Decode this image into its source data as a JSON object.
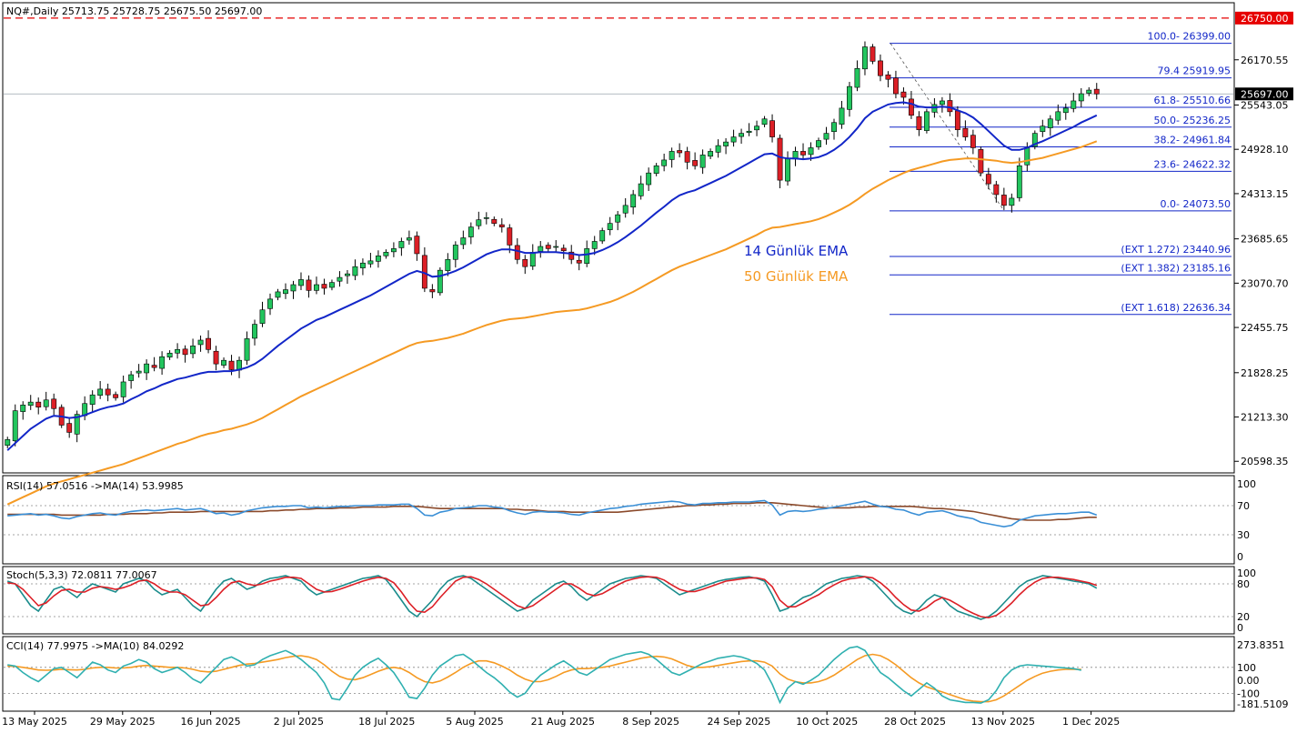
{
  "header": {
    "symbol_info": "NQ#,Daily  25713.75 25728.75 25675.50 25697.00",
    "rsi_info": "RSI(14) 57.0516  ->MA(14) 53.9985",
    "stoch_info": "Stoch(5,3,3) 72.0811 77.0067",
    "cci_info": "CCI(14) 77.9975  ->MA(10) 84.0292"
  },
  "legend": {
    "ema14": "14 Günlük EMA",
    "ema50": "50 Günlük EMA"
  },
  "colors": {
    "bull": "#22c55e",
    "bear": "#dc1f26",
    "ema14": "#1226c8",
    "ema50": "#f59a23",
    "fib": "#1226c8",
    "resistance": "#e60000",
    "rsi": "#3a8fd6",
    "rsi_ma": "#8b4a2b",
    "stoch_k": "#1a8c8c",
    "stoch_d": "#dc1f26",
    "cci": "#2fb0b0",
    "cci_ma": "#f59a23"
  },
  "price_axis": {
    "ticks": [
      "26170.55",
      "25543.05",
      "24928.10",
      "24313.15",
      "23685.65",
      "23070.70",
      "22455.75",
      "21828.25",
      "21213.30",
      "20598.35"
    ],
    "tick_values": [
      26170.55,
      25543.05,
      24928.1,
      24313.15,
      23685.65,
      23070.7,
      22455.75,
      21828.25,
      21213.3,
      20598.35
    ],
    "range": [
      20450,
      26950
    ],
    "current_price": "25697.00",
    "current_value": 25697.0,
    "resistance_label": "26750.00",
    "resistance_value": 26750.0
  },
  "fib_levels": [
    {
      "label": "100.0- 26399.00",
      "value": 26399.0
    },
    {
      "label": "79.4 25919.95",
      "value": 25919.95
    },
    {
      "label": "61.8- 25510.66",
      "value": 25510.66
    },
    {
      "label": "50.0- 25236.25",
      "value": 25236.25
    },
    {
      "label": "38.2- 24961.84",
      "value": 24961.84
    },
    {
      "label": "23.6- 24622.32",
      "value": 24622.32
    },
    {
      "label": "0.0- 24073.50",
      "value": 24073.5
    },
    {
      "label": "(EXT 1.272)  23440.96",
      "value": 23440.96
    },
    {
      "label": "(EXT 1.382)  23185.16",
      "value": 23185.16
    },
    {
      "label": "(EXT 1.618)  22636.34",
      "value": 22636.34
    }
  ],
  "x_axis_labels": [
    "13 May 2025",
    "29 May 2025",
    "16 Jun 2025",
    "2 Jul 2025",
    "18 Jul 2025",
    "5 Aug 2025",
    "21 Aug 2025",
    "8 Sep 2025",
    "24 Sep 2025",
    "10 Oct 2025",
    "28 Oct 2025",
    "13 Nov 2025",
    "1 Dec 2025"
  ],
  "rsi_axis": {
    "ticks": [
      "100",
      "70",
      "30",
      "0"
    ],
    "tick_values": [
      100,
      70,
      30,
      0
    ],
    "levels": [
      70,
      30
    ]
  },
  "stoch_axis": {
    "ticks": [
      "100",
      "80",
      "20",
      "0"
    ],
    "tick_values": [
      100,
      80,
      20,
      0
    ],
    "levels": [
      80,
      20
    ]
  },
  "cci_axis": {
    "ticks": [
      "273.8351",
      "100",
      "0.00",
      "-100",
      "-181.5109"
    ],
    "tick_values": [
      273.8351,
      100,
      0,
      -100,
      -181.5109
    ],
    "levels": [
      100,
      -100
    ]
  },
  "chart_data": {
    "type": "candlestick",
    "series_note": "Close prices sampled per trading day; OHLC approximated from the figure",
    "close": [
      20900,
      21300,
      21380,
      21420,
      21350,
      21450,
      21330,
      21100,
      21000,
      21250,
      21400,
      21520,
      21600,
      21520,
      21480,
      21700,
      21800,
      21850,
      21950,
      21900,
      22050,
      22100,
      22150,
      22080,
      22200,
      22280,
      22150,
      21950,
      22000,
      21870,
      22000,
      22300,
      22500,
      22700,
      22850,
      22950,
      22980,
      23050,
      23120,
      22970,
      23050,
      23000,
      23080,
      23150,
      23200,
      23300,
      23350,
      23380,
      23450,
      23500,
      23550,
      23650,
      23700,
      23480,
      23000,
      22950,
      23250,
      23400,
      23600,
      23700,
      23850,
      23950,
      23980,
      23900,
      23850,
      23600,
      23400,
      23300,
      23500,
      23580,
      23550,
      23580,
      23520,
      23400,
      23350,
      23550,
      23650,
      23800,
      23900,
      24020,
      24150,
      24300,
      24450,
      24600,
      24700,
      24780,
      24900,
      24880,
      24750,
      24700,
      24850,
      24900,
      24980,
      25030,
      25100,
      25150,
      25180,
      25250,
      25350,
      25100,
      24500,
      24800,
      24900,
      24850,
      24950,
      25050,
      25150,
      25300,
      25500,
      25800,
      26050,
      26350,
      26150,
      25950,
      25900,
      25700,
      25650,
      25400,
      25200,
      25450,
      25550,
      25600,
      25450,
      25200,
      25100,
      24950,
      24600,
      24450,
      24300,
      24150,
      24250,
      24700,
      24950,
      25150,
      25250,
      25350,
      25450,
      25500,
      25600,
      25700,
      25750,
      25697
    ],
    "ema14": [
      20750,
      20850,
      20950,
      21050,
      21120,
      21190,
      21230,
      21220,
      21200,
      21210,
      21240,
      21280,
      21320,
      21350,
      21370,
      21400,
      21460,
      21510,
      21570,
      21610,
      21660,
      21700,
      21740,
      21760,
      21790,
      21820,
      21840,
      21840,
      21850,
      21850,
      21870,
      21900,
      21950,
      22020,
      22110,
      22200,
      22280,
      22360,
      22440,
      22500,
      22560,
      22600,
      22650,
      22700,
      22750,
      22800,
      22850,
      22900,
      22960,
      23020,
      23080,
      23140,
      23200,
      23240,
      23210,
      23160,
      23170,
      23200,
      23240,
      23290,
      23350,
      23410,
      23470,
      23510,
      23540,
      23540,
      23520,
      23490,
      23490,
      23500,
      23500,
      23500,
      23490,
      23480,
      23460,
      23470,
      23490,
      23530,
      23580,
      23640,
      23710,
      23790,
      23870,
      23960,
      24050,
      24130,
      24220,
      24290,
      24330,
      24360,
      24410,
      24460,
      24510,
      24560,
      24620,
      24680,
      24740,
      24800,
      24860,
      24870,
      24820,
      24800,
      24800,
      24790,
      24800,
      24820,
      24860,
      24920,
      25000,
      25100,
      25220,
      25360,
      25450,
      25500,
      25550,
      25570,
      25580,
      25560,
      25520,
      25510,
      25510,
      25520,
      25510,
      25470,
      25430,
      25370,
      25280,
      25180,
      25080,
      24980,
      24920,
      24920,
      24950,
      25000,
      25040,
      25090,
      25140,
      25190,
      25240,
      25300,
      25350,
      25400
    ],
    "ema50": [
      20000,
      20050,
      20100,
      20150,
      20200,
      20250,
      20290,
      20320,
      20350,
      20380,
      20410,
      20440,
      20470,
      20500,
      20530,
      20560,
      20600,
      20640,
      20680,
      20720,
      20760,
      20800,
      20840,
      20870,
      20910,
      20950,
      20980,
      21000,
      21030,
      21050,
      21080,
      21110,
      21150,
      21200,
      21260,
      21320,
      21380,
      21440,
      21500,
      21550,
      21600,
      21650,
      21700,
      21750,
      21800,
      21850,
      21900,
      21950,
      22000,
      22050,
      22100,
      22150,
      22200,
      22240,
      22260,
      22270,
      22290,
      22310,
      22340,
      22370,
      22410,
      22450,
      22490,
      22520,
      22550,
      22570,
      22580,
      22590,
      22610,
      22630,
      22650,
      22670,
      22680,
      22690,
      22700,
      22720,
      22750,
      22780,
      22810,
      22850,
      22900,
      22950,
      23010,
      23070,
      23130,
      23190,
      23250,
      23300,
      23340,
      23380,
      23420,
      23460,
      23500,
      23540,
      23590,
      23640,
      23690,
      23740,
      23800,
      23840,
      23850,
      23870,
      23890,
      23910,
      23930,
      23960,
      24000,
      24050,
      24100,
      24160,
      24230,
      24310,
      24380,
      24440,
      24500,
      24550,
      24600,
      24640,
      24670,
      24700,
      24730,
      24760,
      24780,
      24790,
      24800,
      24800,
      24790,
      24780,
      24770,
      24750,
      24740,
      24750,
      24770,
      24790,
      24810,
      24840,
      24870,
      24900,
      24930,
      24960,
      25000,
      25040
    ],
    "rsi": [
      56,
      57,
      58,
      59,
      57,
      58,
      56,
      53,
      52,
      55,
      57,
      59,
      60,
      58,
      57,
      60,
      62,
      63,
      64,
      63,
      64,
      65,
      66,
      64,
      65,
      66,
      63,
      59,
      60,
      57,
      59,
      63,
      65,
      67,
      68,
      69,
      69,
      70,
      70,
      67,
      68,
      67,
      68,
      69,
      69,
      70,
      70,
      70,
      71,
      71,
      71,
      72,
      72,
      66,
      57,
      56,
      61,
      63,
      66,
      67,
      68,
      70,
      70,
      68,
      67,
      63,
      60,
      58,
      61,
      62,
      61,
      61,
      60,
      58,
      57,
      60,
      62,
      64,
      66,
      67,
      69,
      70,
      72,
      73,
      74,
      75,
      76,
      75,
      72,
      71,
      73,
      73,
      74,
      74,
      75,
      75,
      75,
      76,
      77,
      71,
      57,
      62,
      63,
      62,
      63,
      65,
      66,
      68,
      70,
      72,
      74,
      76,
      72,
      69,
      68,
      65,
      64,
      60,
      57,
      61,
      62,
      63,
      60,
      56,
      54,
      52,
      47,
      45,
      43,
      41,
      43,
      50,
      53,
      56,
      57,
      58,
      59,
      59,
      60,
      61,
      61,
      57
    ],
    "rsi_ma": [
      58,
      58,
      58,
      58,
      58,
      58,
      58,
      57,
      57,
      57,
      57,
      57,
      57,
      58,
      58,
      58,
      59,
      59,
      59,
      60,
      60,
      61,
      61,
      61,
      61,
      62,
      62,
      62,
      62,
      62,
      62,
      62,
      62,
      62,
      63,
      63,
      64,
      64,
      65,
      65,
      66,
      66,
      66,
      67,
      67,
      67,
      68,
      68,
      68,
      68,
      69,
      69,
      69,
      69,
      68,
      67,
      66,
      66,
      66,
      66,
      66,
      66,
      66,
      66,
      66,
      65,
      65,
      64,
      64,
      63,
      62,
      62,
      62,
      61,
      61,
      61,
      61,
      61,
      61,
      61,
      62,
      63,
      64,
      65,
      66,
      67,
      68,
      69,
      70,
      70,
      71,
      71,
      72,
      72,
      73,
      73,
      73,
      74,
      74,
      74,
      73,
      72,
      71,
      70,
      69,
      68,
      67,
      67,
      67,
      67,
      68,
      68,
      69,
      69,
      69,
      69,
      69,
      69,
      68,
      67,
      66,
      66,
      65,
      64,
      63,
      62,
      60,
      58,
      56,
      54,
      52,
      51,
      50,
      50,
      50,
      50,
      51,
      51,
      52,
      53,
      54,
      54
    ],
    "stoch_k": [
      85,
      80,
      60,
      40,
      30,
      50,
      70,
      75,
      65,
      55,
      70,
      80,
      75,
      70,
      65,
      80,
      85,
      90,
      85,
      70,
      60,
      65,
      70,
      55,
      40,
      30,
      50,
      70,
      85,
      90,
      80,
      70,
      75,
      85,
      90,
      92,
      95,
      90,
      85,
      70,
      60,
      65,
      70,
      75,
      80,
      85,
      90,
      92,
      95,
      88,
      70,
      50,
      30,
      20,
      35,
      50,
      70,
      85,
      92,
      95,
      90,
      80,
      70,
      60,
      50,
      40,
      30,
      35,
      50,
      60,
      70,
      80,
      85,
      75,
      60,
      50,
      60,
      70,
      80,
      85,
      90,
      92,
      95,
      93,
      90,
      80,
      70,
      60,
      65,
      70,
      75,
      80,
      85,
      88,
      90,
      92,
      93,
      90,
      85,
      60,
      30,
      35,
      45,
      55,
      60,
      70,
      80,
      85,
      90,
      92,
      95,
      93,
      85,
      70,
      55,
      40,
      30,
      25,
      35,
      50,
      60,
      55,
      40,
      30,
      25,
      20,
      15,
      20,
      30,
      45,
      60,
      75,
      85,
      90,
      95,
      93,
      90,
      88,
      85,
      83,
      80,
      72
    ],
    "stoch_d": [
      82,
      80,
      70,
      55,
      40,
      45,
      58,
      68,
      70,
      65,
      65,
      72,
      75,
      73,
      70,
      73,
      78,
      85,
      87,
      80,
      70,
      65,
      65,
      60,
      50,
      40,
      42,
      55,
      70,
      82,
      85,
      80,
      77,
      80,
      85,
      88,
      92,
      92,
      90,
      80,
      70,
      65,
      66,
      70,
      75,
      80,
      85,
      89,
      92,
      90,
      82,
      65,
      45,
      30,
      28,
      38,
      55,
      70,
      85,
      92,
      93,
      88,
      80,
      70,
      60,
      50,
      40,
      35,
      40,
      50,
      60,
      70,
      80,
      80,
      72,
      62,
      58,
      62,
      70,
      78,
      85,
      89,
      92,
      93,
      92,
      87,
      78,
      70,
      66,
      66,
      70,
      75,
      80,
      85,
      87,
      89,
      91,
      91,
      88,
      75,
      50,
      38,
      38,
      45,
      53,
      60,
      70,
      78,
      85,
      89,
      91,
      93,
      91,
      82,
      70,
      55,
      42,
      32,
      30,
      37,
      48,
      55,
      50,
      42,
      33,
      26,
      20,
      18,
      22,
      32,
      45,
      60,
      73,
      83,
      90,
      92,
      92,
      90,
      88,
      85,
      82,
      77
    ],
    "cci": [
      120,
      110,
      60,
      20,
      -10,
      40,
      90,
      100,
      60,
      20,
      80,
      140,
      120,
      80,
      60,
      110,
      130,
      160,
      140,
      90,
      60,
      80,
      100,
      60,
      10,
      -20,
      40,
      100,
      160,
      180,
      150,
      110,
      120,
      160,
      190,
      210,
      230,
      200,
      160,
      110,
      60,
      -20,
      -140,
      -150,
      -60,
      40,
      100,
      140,
      170,
      120,
      60,
      -30,
      -130,
      -140,
      -60,
      40,
      110,
      150,
      190,
      200,
      160,
      110,
      60,
      20,
      -30,
      -90,
      -130,
      -100,
      -20,
      40,
      80,
      120,
      150,
      110,
      60,
      40,
      80,
      120,
      160,
      180,
      200,
      210,
      220,
      200,
      160,
      110,
      60,
      40,
      70,
      100,
      130,
      150,
      170,
      180,
      190,
      180,
      160,
      130,
      80,
      -30,
      -170,
      -60,
      -10,
      -30,
      0,
      40,
      100,
      160,
      210,
      250,
      260,
      230,
      140,
      60,
      20,
      -30,
      -80,
      -120,
      -70,
      -20,
      -60,
      -120,
      -150,
      -160,
      -170,
      -170,
      -175,
      -150,
      -80,
      20,
      80,
      110,
      120,
      115,
      110,
      105,
      100,
      95,
      90,
      78
    ],
    "cci_ma": [
      110,
      108,
      100,
      90,
      80,
      78,
      80,
      85,
      82,
      80,
      85,
      95,
      100,
      100,
      95,
      95,
      100,
      110,
      115,
      110,
      105,
      100,
      100,
      95,
      85,
      70,
      65,
      70,
      85,
      100,
      115,
      125,
      130,
      140,
      150,
      160,
      175,
      185,
      190,
      180,
      160,
      120,
      70,
      30,
      10,
      5,
      20,
      45,
      70,
      90,
      100,
      90,
      60,
      20,
      -10,
      -20,
      -5,
      25,
      60,
      100,
      130,
      150,
      150,
      135,
      110,
      80,
      40,
      10,
      -10,
      -10,
      5,
      30,
      60,
      80,
      90,
      90,
      95,
      100,
      110,
      125,
      140,
      155,
      170,
      180,
      185,
      180,
      165,
      140,
      115,
      100,
      100,
      105,
      115,
      125,
      135,
      145,
      150,
      150,
      140,
      110,
      50,
      10,
      -10,
      -20,
      -20,
      -10,
      10,
      40,
      80,
      120,
      160,
      190,
      200,
      190,
      160,
      120,
      70,
      20,
      -20,
      -50,
      -70,
      -90,
      -110,
      -130,
      -150,
      -160,
      -165,
      -165,
      -150,
      -120,
      -80,
      -40,
      0,
      30,
      55,
      70,
      80,
      85,
      85,
      84
    ]
  }
}
